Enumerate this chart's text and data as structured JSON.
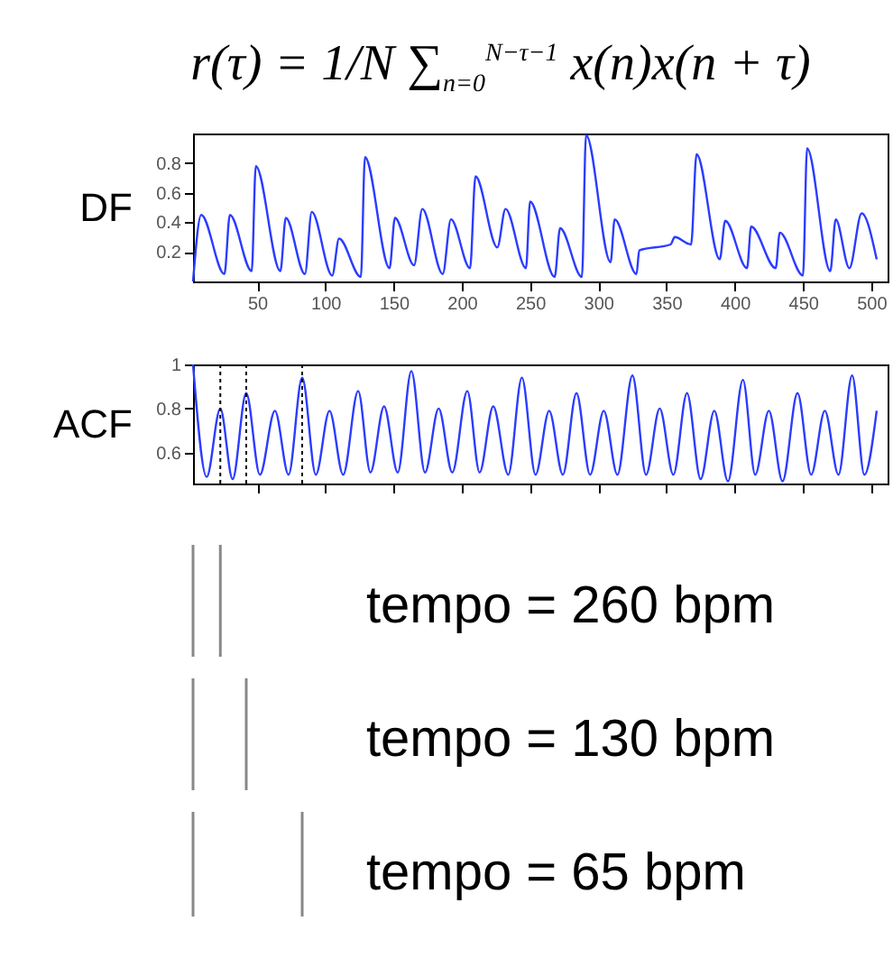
{
  "chart_data": [
    {
      "type": "line",
      "title": "r(τ) = 1/N ∑$_{n=0}$$^{N−τ−1}$ x(n)x(n + τ)",
      "ylabel": "DF",
      "x": [
        3,
        9,
        26,
        30,
        46,
        49,
        67,
        71,
        85,
        90,
        105,
        110,
        126,
        129,
        147,
        151,
        165,
        171,
        186,
        192,
        206,
        210,
        226,
        232,
        247,
        250,
        268,
        272,
        288,
        291,
        309,
        312,
        328,
        330,
        353,
        356,
        368,
        372,
        389,
        393,
        409,
        412,
        430,
        433,
        450,
        453,
        470,
        474,
        484,
        493,
        504
      ],
      "series": [
        {
          "color": "#2b3cff",
          "values": [
            0,
            0.45,
            0.05,
            0.45,
            0.07,
            0.78,
            0.07,
            0.43,
            0.05,
            0.47,
            0.04,
            0.29,
            0.03,
            0.84,
            0.09,
            0.43,
            0.11,
            0.49,
            0.05,
            0.42,
            0.09,
            0.71,
            0.23,
            0.49,
            0.09,
            0.54,
            0.03,
            0.36,
            0.03,
            0.99,
            0.13,
            0.42,
            0.05,
            0.21,
            0.25,
            0.3,
            0.25,
            0.86,
            0.15,
            0.41,
            0.09,
            0.37,
            0.09,
            0.33,
            0.04,
            0.9,
            0.07,
            0.42,
            0.09,
            0.46,
            0.15
          ]
        }
      ],
      "xlim": [
        3,
        512
      ],
      "ylim": [
        0,
        1
      ],
      "xticks": [
        50,
        100,
        150,
        200,
        250,
        300,
        350,
        400,
        450,
        500
      ],
      "yticks": [
        0.2,
        0.4,
        0.6,
        0.8
      ],
      "grid": false
    },
    {
      "type": "line",
      "ylabel": "ACF",
      "x": [
        3,
        13,
        23,
        32,
        42,
        52,
        63,
        73,
        83,
        93,
        103,
        113,
        124,
        133,
        143,
        153,
        163,
        173,
        183,
        193,
        204,
        213,
        223,
        234,
        244,
        254,
        264,
        274,
        284,
        294,
        304,
        314,
        325,
        335,
        345,
        355,
        365,
        375,
        385,
        395,
        406,
        415,
        425,
        435,
        446,
        456,
        466,
        476,
        486,
        495,
        504
      ],
      "series": [
        {
          "color": "#2b3cff",
          "values": [
            1,
            0.49,
            0.8,
            0.48,
            0.87,
            0.5,
            0.79,
            0.5,
            0.94,
            0.5,
            0.79,
            0.5,
            0.88,
            0.51,
            0.81,
            0.51,
            0.97,
            0.51,
            0.8,
            0.51,
            0.88,
            0.51,
            0.81,
            0.5,
            0.94,
            0.5,
            0.79,
            0.5,
            0.87,
            0.5,
            0.79,
            0.5,
            0.95,
            0.5,
            0.8,
            0.5,
            0.87,
            0.48,
            0.79,
            0.47,
            0.93,
            0.5,
            0.79,
            0.47,
            0.87,
            0.5,
            0.79,
            0.5,
            0.95,
            0.5,
            0.79
          ]
        }
      ],
      "xlim": [
        3,
        512
      ],
      "ylim": [
        0.46,
        1
      ],
      "xticks": [
        50,
        100,
        150,
        200,
        250,
        300,
        350,
        400,
        450,
        500
      ],
      "yticks": [
        0.6,
        0.8,
        {
          "value": 1,
          "label": "1"
        }
      ],
      "grid": false,
      "tick_labels": "y",
      "ref_lines": [
        {
          "axis": "x",
          "value": 23,
          "line_style": "dotted",
          "color": "#000000"
        },
        {
          "axis": "x",
          "value": 42,
          "line_style": "dotted",
          "color": "#000000"
        },
        {
          "axis": "x",
          "value": 83,
          "line_style": "dotted",
          "color": "#000000"
        }
      ],
      "annotations": [
        "tempo = 260 bpm",
        "tempo = 130 bpm",
        "tempo = 65 bpm"
      ]
    }
  ]
}
